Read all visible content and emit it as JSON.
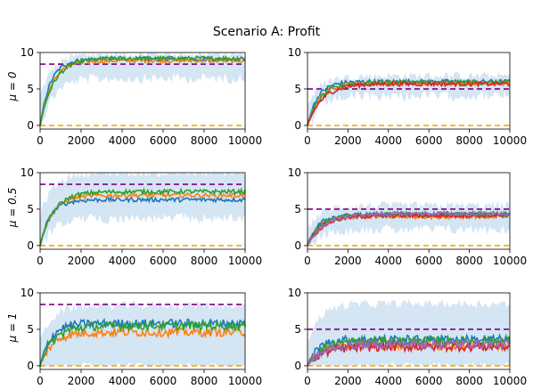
{
  "title": "Scenario A: Profit",
  "row_labels": [
    "μ = 0",
    "μ = 0.5",
    "μ = 1"
  ],
  "colors": {
    "band": "#cfe2f3",
    "reference_high": "#800080",
    "reference_low": "#ffa500",
    "series": [
      "#1f77b4",
      "#ff7f0e",
      "#2ca02c",
      "#d62728",
      "#9467bd"
    ]
  },
  "chart_data": [
    {
      "type": "line",
      "panel": "mu0-left",
      "x_range": [
        0,
        10000
      ],
      "ylim": [
        -0.5,
        10
      ],
      "xticks": [
        0,
        2000,
        4000,
        6000,
        8000,
        10000
      ],
      "yticks": [
        0,
        5,
        10
      ],
      "reference_lines": [
        8.4,
        0
      ],
      "series_count": 3,
      "final_values": [
        9.1,
        8.9,
        9.2
      ],
      "band": {
        "lower": 7.2,
        "upper": 9.8
      }
    },
    {
      "type": "line",
      "panel": "mu0-right",
      "x_range": [
        0,
        10000
      ],
      "ylim": [
        -0.5,
        10
      ],
      "xticks": [
        0,
        2000,
        4000,
        6000,
        8000,
        10000
      ],
      "yticks": [
        0,
        5,
        10
      ],
      "reference_lines": [
        5,
        0
      ],
      "series_count": 4,
      "final_values": [
        6.0,
        5.8,
        5.9,
        5.7
      ],
      "band": {
        "lower": 4.8,
        "upper": 6.8
      }
    },
    {
      "type": "line",
      "panel": "mu05-left",
      "x_range": [
        0,
        10000
      ],
      "ylim": [
        -0.5,
        10
      ],
      "xticks": [
        0,
        2000,
        4000,
        6000,
        8000,
        10000
      ],
      "yticks": [
        0,
        5,
        10
      ],
      "reference_lines": [
        8.4,
        0
      ],
      "series_count": 3,
      "final_values": [
        6.3,
        6.9,
        7.4
      ],
      "band": {
        "lower": 4.5,
        "upper": 10
      }
    },
    {
      "type": "line",
      "panel": "mu05-right",
      "x_range": [
        0,
        10000
      ],
      "ylim": [
        -0.5,
        10
      ],
      "xticks": [
        0,
        2000,
        4000,
        6000,
        8000,
        10000
      ],
      "yticks": [
        0,
        5,
        10
      ],
      "reference_lines": [
        5,
        0
      ],
      "series_count": 5,
      "final_values": [
        4.2,
        4.0,
        4.3,
        4.1,
        4.4
      ],
      "band": {
        "lower": 3.0,
        "upper": 5.5
      }
    },
    {
      "type": "line",
      "panel": "mu1-left",
      "x_range": [
        0,
        10000
      ],
      "ylim": [
        -0.5,
        10
      ],
      "xticks": [
        0,
        2000,
        4000,
        6000,
        8000,
        10000
      ],
      "yticks": [
        0,
        5,
        10
      ],
      "reference_lines": [
        8.4,
        0
      ],
      "series_count": 3,
      "final_values": [
        5.8,
        4.6,
        5.5
      ],
      "band": {
        "lower": 0.5,
        "upper": 8.3
      }
    },
    {
      "type": "line",
      "panel": "mu1-right",
      "x_range": [
        0,
        10000
      ],
      "ylim": [
        -0.5,
        10
      ],
      "xticks": [
        0,
        2000,
        4000,
        6000,
        8000,
        10000
      ],
      "yticks": [
        0,
        5,
        10
      ],
      "reference_lines": [
        5,
        0
      ],
      "series_count": 5,
      "final_values": [
        3.6,
        2.8,
        3.4,
        2.6,
        3.0
      ],
      "band": {
        "lower": 0.5,
        "upper": 8.5
      }
    }
  ]
}
